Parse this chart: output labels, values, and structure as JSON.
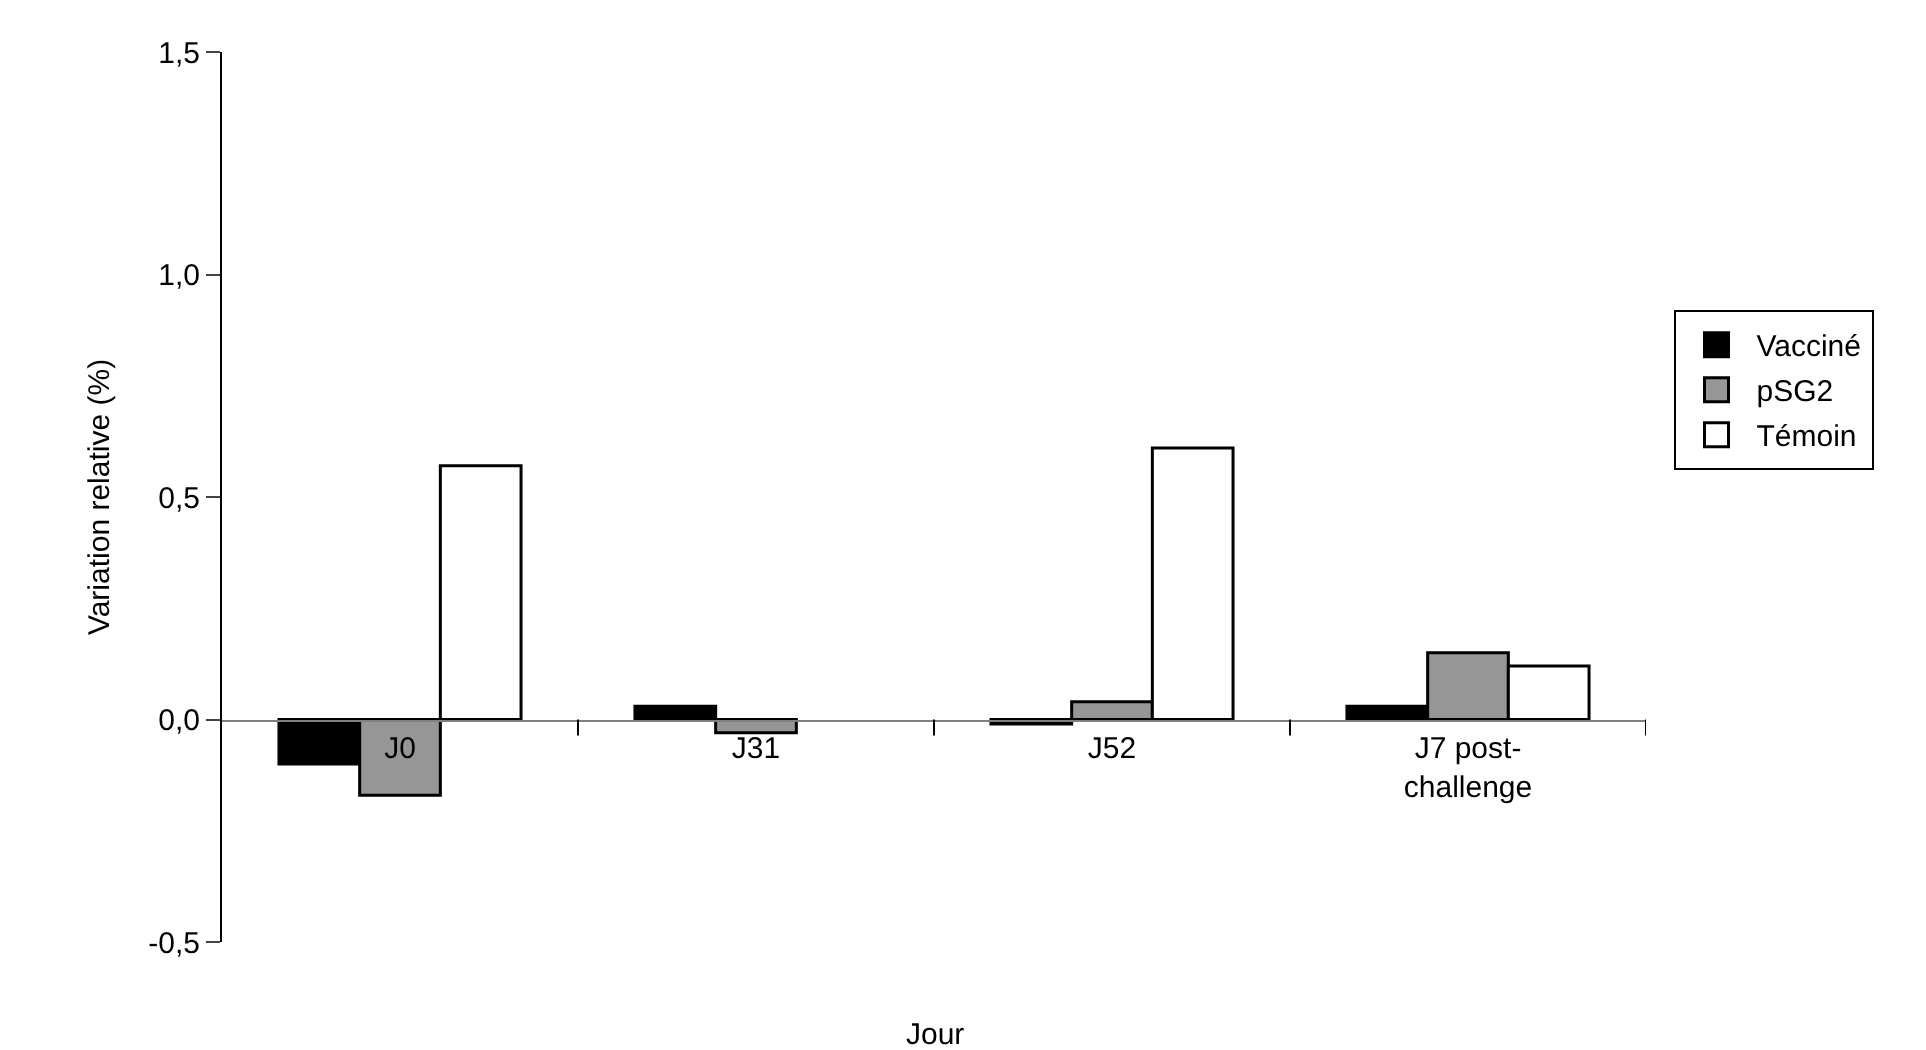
{
  "chart_data": {
    "type": "bar",
    "xlabel": "Jour",
    "ylabel": "Variation relative (%)",
    "categories": [
      "J0",
      "J31",
      "J52",
      "J7 post-challenge"
    ],
    "series": [
      {
        "name": "Vacciné",
        "color": "#000000",
        "values": [
          -0.1,
          0.03,
          -0.01,
          0.03
        ]
      },
      {
        "name": "pSG2",
        "color": "#969696",
        "values": [
          -0.17,
          -0.03,
          0.04,
          0.15
        ]
      },
      {
        "name": "Témoin",
        "color": "#ffffff",
        "values": [
          0.57,
          null,
          0.61,
          0.12
        ]
      }
    ],
    "ylim": [
      -0.5,
      1.5
    ],
    "yticks": [
      {
        "value": -0.5,
        "label": "-0,5"
      },
      {
        "value": 0,
        "label": "0,0"
      },
      {
        "value": 0.5,
        "label": "0,5"
      },
      {
        "value": 1,
        "label": "1,0"
      },
      {
        "value": 1.5,
        "label": "1,5"
      }
    ],
    "legend": "right"
  }
}
